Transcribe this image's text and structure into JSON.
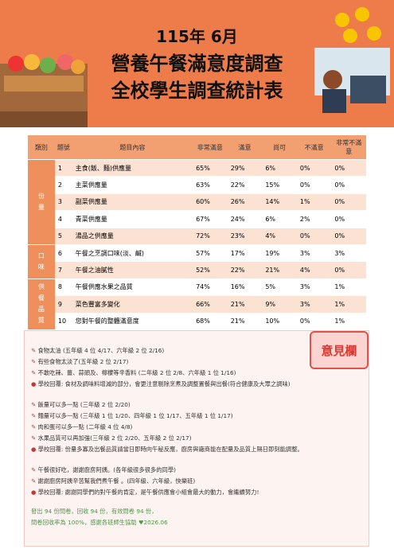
{
  "header": {
    "lines": [
      "115年 6月",
      "營養午餐滿意度調查",
      "全校學生調查統計表"
    ]
  },
  "table": {
    "columns": [
      "類別",
      "題號",
      "題目內容",
      "非常滿意",
      "滿意",
      "尚可",
      "不滿意",
      "非常不滿意"
    ],
    "groups": [
      {
        "label": "份量",
        "rows": [
          [
            "1",
            "主食(飯、麵)供應量",
            "65%",
            "29%",
            "6%",
            "0%",
            "0%"
          ],
          [
            "2",
            "主菜供應量",
            "63%",
            "22%",
            "15%",
            "0%",
            "0%"
          ],
          [
            "3",
            "副菜供應量",
            "60%",
            "26%",
            "14%",
            "1%",
            "0%"
          ],
          [
            "4",
            "青菜供應量",
            "67%",
            "24%",
            "6%",
            "2%",
            "0%"
          ],
          [
            "5",
            "湯品之供應量",
            "72%",
            "23%",
            "4%",
            "0%",
            "0%"
          ]
        ]
      },
      {
        "label": "口味",
        "rows": [
          [
            "6",
            "午餐之烹調口味(淡、鹹)",
            "57%",
            "17%",
            "19%",
            "3%",
            "3%"
          ],
          [
            "7",
            "午餐之油膩性",
            "52%",
            "22%",
            "21%",
            "4%",
            "0%"
          ]
        ]
      },
      {
        "label": "供餐品質",
        "rows": [
          [
            "8",
            "午餐供應水果之品質",
            "74%",
            "16%",
            "5%",
            "3%",
            "1%"
          ],
          [
            "9",
            "菜色豐富多變化",
            "66%",
            "21%",
            "9%",
            "3%",
            "1%"
          ],
          [
            "10",
            "您對午餐的整體滿意度",
            "68%",
            "21%",
            "10%",
            "0%",
            "1%"
          ]
        ]
      }
    ]
  },
  "comments": {
    "title": "意見欄",
    "groups": [
      {
        "items": [
          "食物太油 (五年級 4 位 4/17、六年級 2 位 2/16)",
          "有些食物太淡了(五年級 2 位 2/17)",
          "不敢吃辣、薑、蒜頭及、檸檬等辛香料 (二年級 2 位 2/8、六年級 1 位 1/16)"
        ],
        "reply": "學校回覆: 食材及調味料增減的部分，會更注意剔除烹煮及調整置餐與出餐(符合健康及大眾之調味)"
      },
      {
        "items": [
          "飯量可以多一點 (三年級 2 位 2/20)",
          "麵量可以多一點 (三年級 1 位 1/20、四年級 1 位 1/17、五年級 1 位 1/17)",
          "肉和蛋可以多一點 (二年級 4 位 4/8)",
          "水果品質可以再加強(三年級 2 位 2/20、五年級 2 位 2/17)"
        ],
        "reply": "學校回覆: 份量多寡及出餐品質請當日即時向午秘反應，廚房與廠商能在配量及品質上隔日即刻能調整。"
      },
      {
        "items": [
          "午餐很好吃，謝謝廚房阿姨。(各年級很多很多的同學)",
          "謝謝廚房阿姨辛苦幫我們煮午餐 。(四年級、六年級，快樂班)"
        ],
        "reply": "學校回覆: 謝謝同學們的對午餐的肯定，是午餐供應會小組會最大的動力，會繼續努力!"
      }
    ],
    "footer": [
      "發出 94 份問卷，回收 94 份，有效問卷 94 份，",
      "問卷回收率為 100%，感謝各班師生協助",
      "2026.06"
    ]
  }
}
